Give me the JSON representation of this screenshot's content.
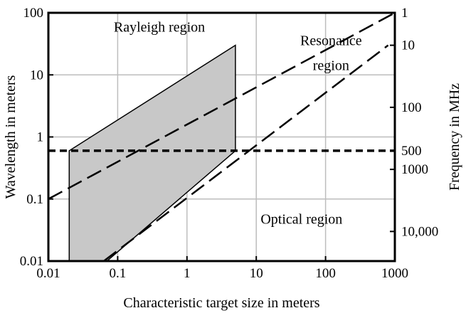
{
  "chart_data": {
    "type": "line",
    "title": "",
    "xlabel": "Characteristic target size in meters",
    "ylabel": "Wavelength in meters",
    "y2label": "Frequency in MHz",
    "x_scale": "log",
    "y_scale": "log",
    "xlim": [
      0.01,
      1000
    ],
    "ylim": [
      0.01,
      100
    ],
    "grid": true,
    "x_ticks": [
      {
        "value": 0.01,
        "label": "0.01"
      },
      {
        "value": 0.1,
        "label": "0.1"
      },
      {
        "value": 1,
        "label": "1"
      },
      {
        "value": 10,
        "label": "10"
      },
      {
        "value": 100,
        "label": "100"
      },
      {
        "value": 1000,
        "label": "1000"
      }
    ],
    "y_ticks": [
      {
        "value": 0.01,
        "label": "0.01"
      },
      {
        "value": 0.1,
        "label": "0.1"
      },
      {
        "value": 1,
        "label": "1"
      },
      {
        "value": 10,
        "label": "10"
      },
      {
        "value": 100,
        "label": "100"
      }
    ],
    "y2_ticks": [
      {
        "wavelength": 300,
        "label": "1"
      },
      {
        "wavelength": 30,
        "label": "10"
      },
      {
        "wavelength": 3,
        "label": "100"
      },
      {
        "wavelength": 0.6,
        "label": "500"
      },
      {
        "wavelength": 0.3,
        "label": "1000"
      },
      {
        "wavelength": 0.03,
        "label": "10,000"
      }
    ],
    "series": [
      {
        "style": "long-dash",
        "x": [
          0.01,
          1000
        ],
        "y": [
          0.1,
          100
        ]
      },
      {
        "style": "long-dash",
        "x": [
          0.063,
          800
        ],
        "y": [
          0.01,
          30
        ]
      },
      {
        "style": "short-dash",
        "x": [
          0.01,
          1000
        ],
        "y": [
          0.6,
          0.6
        ]
      }
    ],
    "shaded_region": {
      "x": [
        0.02,
        0.02,
        5,
        5,
        0.07
      ],
      "y": [
        0.01,
        0.6,
        30,
        0.6,
        0.01
      ],
      "color": "#c8c8c8"
    },
    "annotations": [
      {
        "text": "Rayleigh region",
        "x": 0.4,
        "y": 50
      },
      {
        "text": "Resonance",
        "x": 120,
        "y": 30
      },
      {
        "text": "region",
        "x": 120,
        "y": 12
      },
      {
        "text": "Optical region",
        "x": 45,
        "y": 0.04
      }
    ]
  }
}
